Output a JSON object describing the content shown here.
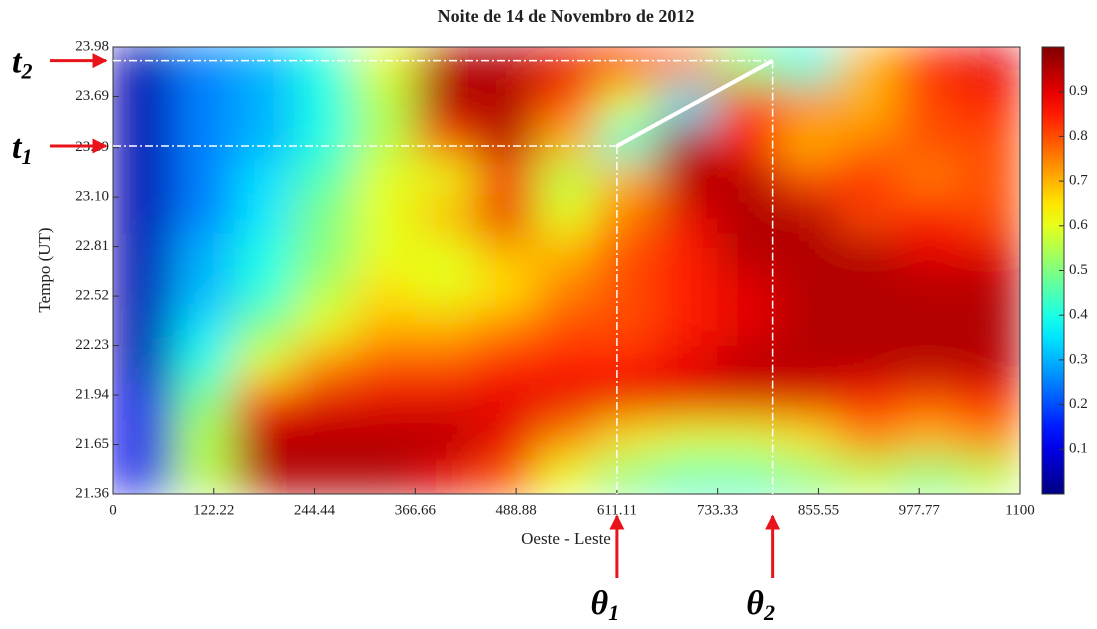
{
  "chart_data": {
    "type": "heatmap",
    "title": "Noite de 14 de Novembro de 2012",
    "xlabel": "Oeste - Leste",
    "ylabel": "Tempo (UT)",
    "xlim": [
      0,
      1100
    ],
    "xticks": [
      0,
      122.22,
      244.44,
      366.66,
      488.88,
      611.11,
      733.33,
      855.55,
      977.77,
      1100
    ],
    "ylim": [
      21.36,
      23.98
    ],
    "yticks": [
      21.36,
      21.65,
      21.94,
      22.23,
      22.52,
      22.81,
      {
        "value": 23.1,
        "label": "23.10"
      },
      23.39,
      23.69,
      23.98
    ],
    "zlim": [
      0,
      1
    ],
    "zticks": [
      0.1,
      0.2,
      0.3,
      0.4,
      0.5,
      0.6,
      0.7,
      0.8,
      0.9
    ],
    "colormap": "jet",
    "xbins": [
      0,
      73,
      147,
      220,
      293,
      367,
      440,
      513,
      587,
      660,
      733,
      807,
      880,
      953,
      1027,
      1100
    ],
    "ybins": [
      21.36,
      21.58,
      21.8,
      22.01,
      22.23,
      22.45,
      22.67,
      22.89,
      23.11,
      23.32,
      23.54,
      23.76,
      23.98
    ],
    "z": [
      [
        0.1,
        0.55,
        0.95,
        0.95,
        0.95,
        0.9,
        0.8,
        0.6,
        0.5,
        0.45,
        0.45,
        0.5,
        0.55,
        0.5,
        0.55
      ],
      [
        0.1,
        0.55,
        0.95,
        0.95,
        0.95,
        0.95,
        0.9,
        0.75,
        0.65,
        0.6,
        0.6,
        0.65,
        0.75,
        0.7,
        0.75
      ],
      [
        0.1,
        0.5,
        0.85,
        0.9,
        0.9,
        0.9,
        0.9,
        0.9,
        0.9,
        0.9,
        0.9,
        0.9,
        0.85,
        0.8,
        0.85
      ],
      [
        0.05,
        0.4,
        0.6,
        0.75,
        0.8,
        0.8,
        0.85,
        0.85,
        0.85,
        0.9,
        0.95,
        0.95,
        0.95,
        0.95,
        0.95
      ],
      [
        0.05,
        0.35,
        0.5,
        0.6,
        0.7,
        0.7,
        0.75,
        0.8,
        0.8,
        0.85,
        0.9,
        0.95,
        0.95,
        0.95,
        0.95
      ],
      [
        0.05,
        0.3,
        0.4,
        0.55,
        0.65,
        0.6,
        0.65,
        0.75,
        0.8,
        0.85,
        0.9,
        0.95,
        0.95,
        0.95,
        0.95
      ],
      [
        0.05,
        0.3,
        0.4,
        0.5,
        0.6,
        0.6,
        0.7,
        0.7,
        0.8,
        0.85,
        0.95,
        0.95,
        0.95,
        0.9,
        0.9
      ],
      [
        0.05,
        0.25,
        0.35,
        0.5,
        0.6,
        0.7,
        0.9,
        0.6,
        0.75,
        0.9,
        0.95,
        0.95,
        0.8,
        0.85,
        0.8
      ],
      [
        0.05,
        0.25,
        0.35,
        0.45,
        0.6,
        0.6,
        0.8,
        0.55,
        0.7,
        0.95,
        0.95,
        0.8,
        0.85,
        0.75,
        0.8
      ],
      [
        0.05,
        0.25,
        0.3,
        0.4,
        0.55,
        0.8,
        0.95,
        0.7,
        0.4,
        0.95,
        0.85,
        0.7,
        0.75,
        0.8,
        0.8
      ],
      [
        0.05,
        0.25,
        0.3,
        0.4,
        0.55,
        0.95,
        0.95,
        0.8,
        0.6,
        0.35,
        0.85,
        0.75,
        0.7,
        0.8,
        0.85
      ],
      [
        0.05,
        0.25,
        0.3,
        0.4,
        0.6,
        0.95,
        0.95,
        0.9,
        0.85,
        0.75,
        0.5,
        0.4,
        0.7,
        0.85,
        0.9
      ]
    ],
    "time_markers": [
      {
        "text": "t",
        "sub": "2",
        "y": 23.9,
        "x_end": 800
      },
      {
        "text": "t",
        "sub": "1",
        "y": 23.4,
        "x_end": 611.11
      }
    ],
    "angle_markers": [
      {
        "text": "θ",
        "sub": "1",
        "x": 611.11,
        "y_start": 23.4
      },
      {
        "text": "θ",
        "sub": "2",
        "x": 800,
        "y_start": 23.9
      }
    ],
    "segment": {
      "x": [
        611.11,
        800
      ],
      "y": [
        23.4,
        23.9
      ],
      "color": "#ffffff"
    }
  }
}
